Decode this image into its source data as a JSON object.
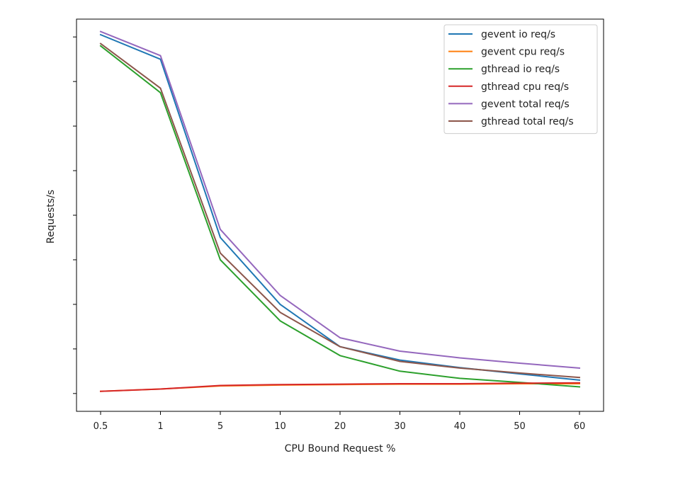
{
  "chart_data": {
    "type": "line",
    "title": "",
    "xlabel": "CPU Bound Request %",
    "ylabel": "Requests/s",
    "categories": [
      "0.5",
      "1",
      "5",
      "10",
      "20",
      "30",
      "40",
      "50",
      "60"
    ],
    "ylim": [
      -0.4,
      8.4
    ],
    "y_ticks": [
      0,
      1,
      2,
      3,
      4,
      5,
      6,
      7,
      8
    ],
    "y_tick_labels_visible": false,
    "grid": false,
    "legend_position": "top-right",
    "series": [
      {
        "name": "gevent io req/s",
        "color": "#1f77b4",
        "values": [
          8.05,
          7.5,
          3.5,
          2.0,
          1.05,
          0.75,
          0.58,
          0.44,
          0.3
        ]
      },
      {
        "name": "gevent cpu req/s",
        "color": "#ff7f0e",
        "values": [
          0.05,
          0.1,
          0.17,
          0.19,
          0.2,
          0.21,
          0.21,
          0.22,
          0.22
        ]
      },
      {
        "name": "gthread io req/s",
        "color": "#2ca02c",
        "values": [
          7.8,
          6.75,
          3.0,
          1.63,
          0.85,
          0.5,
          0.34,
          0.25,
          0.15
        ]
      },
      {
        "name": "gthread cpu req/s",
        "color": "#d62728",
        "values": [
          0.05,
          0.1,
          0.18,
          0.2,
          0.21,
          0.22,
          0.22,
          0.23,
          0.24
        ]
      },
      {
        "name": "gevent total req/s",
        "color": "#9467bd",
        "values": [
          8.12,
          7.58,
          3.68,
          2.2,
          1.25,
          0.95,
          0.8,
          0.68,
          0.57
        ]
      },
      {
        "name": "gthread total req/s",
        "color": "#8c564b",
        "values": [
          7.85,
          6.85,
          3.15,
          1.82,
          1.05,
          0.72,
          0.57,
          0.46,
          0.36
        ]
      }
    ]
  }
}
